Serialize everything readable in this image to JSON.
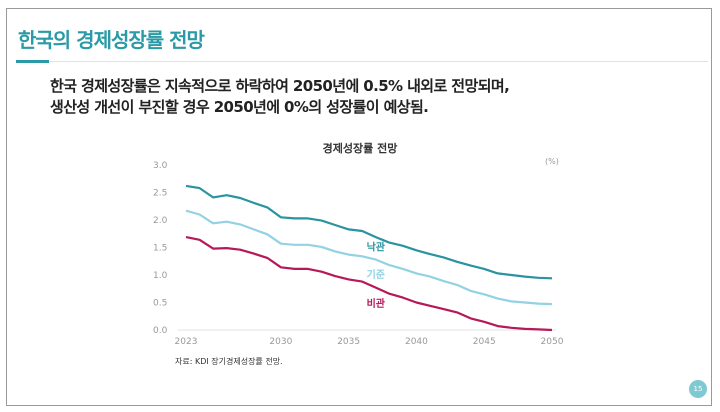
{
  "slide": {
    "title": "한국의 경제성장률 전망",
    "headline_line1": "한국 경제성장률은 지속적으로 하락하여 2050년에 0.5% 내외로 전망되며,",
    "headline_line2": "생산성 개선이 부진할 경우 2050년에 0%의 성장률이 예상됨.",
    "source": "자료: KDI 장기경제성장률 전망.",
    "page_number": "15"
  },
  "chart_data": {
    "type": "line",
    "title": "경제성장률 전망",
    "unit": "(%)",
    "xlabel": "",
    "ylabel": "",
    "xlim": [
      2023,
      2050
    ],
    "ylim": [
      0,
      3.0
    ],
    "x_ticks": [
      "2023",
      "2030",
      "2035",
      "2040",
      "2045",
      "2050"
    ],
    "y_ticks": [
      "0.0",
      "0.5",
      "1.0",
      "1.5",
      "2.0",
      "2.5",
      "3.0"
    ],
    "grid": false,
    "x": [
      2023,
      2024,
      2025,
      2026,
      2027,
      2028,
      2029,
      2030,
      2031,
      2032,
      2033,
      2034,
      2035,
      2036,
      2037,
      2038,
      2039,
      2040,
      2041,
      2042,
      2043,
      2044,
      2045,
      2046,
      2047,
      2048,
      2049,
      2050
    ],
    "series": [
      {
        "name": "낙관",
        "color": "#2a93a0",
        "values": [
          2.62,
          2.58,
          2.41,
          2.45,
          2.4,
          2.31,
          2.23,
          2.05,
          2.03,
          2.03,
          1.99,
          1.91,
          1.83,
          1.8,
          1.69,
          1.59,
          1.53,
          1.45,
          1.38,
          1.32,
          1.24,
          1.17,
          1.11,
          1.03,
          1.0,
          0.97,
          0.95,
          0.94
        ]
      },
      {
        "name": "기준",
        "color": "#92d2e2",
        "values": [
          2.17,
          2.1,
          1.94,
          1.97,
          1.92,
          1.83,
          1.74,
          1.57,
          1.55,
          1.55,
          1.51,
          1.43,
          1.37,
          1.34,
          1.28,
          1.18,
          1.11,
          1.03,
          0.97,
          0.89,
          0.82,
          0.71,
          0.65,
          0.57,
          0.52,
          0.5,
          0.48,
          0.47
        ]
      },
      {
        "name": "비관",
        "color": "#b5195a",
        "values": [
          1.69,
          1.64,
          1.48,
          1.49,
          1.46,
          1.39,
          1.31,
          1.14,
          1.11,
          1.11,
          1.06,
          0.98,
          0.92,
          0.88,
          0.77,
          0.66,
          0.59,
          0.5,
          0.44,
          0.38,
          0.32,
          0.21,
          0.15,
          0.07,
          0.04,
          0.02,
          0.01,
          0.0
        ]
      }
    ]
  }
}
